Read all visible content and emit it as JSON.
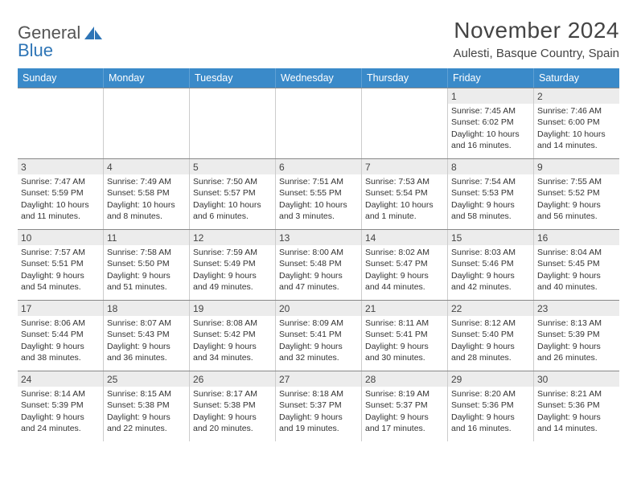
{
  "brand": {
    "part1": "General",
    "part2": "Blue"
  },
  "title": "November 2024",
  "location": "Aulesti, Basque Country, Spain",
  "header_bg": "#3a8ac9",
  "daynum_bg": "#ececec",
  "border_color": "#888888",
  "weekdays": [
    "Sunday",
    "Monday",
    "Tuesday",
    "Wednesday",
    "Thursday",
    "Friday",
    "Saturday"
  ],
  "weeks": [
    [
      {
        "n": "",
        "sr": "",
        "ss": "",
        "dl": ""
      },
      {
        "n": "",
        "sr": "",
        "ss": "",
        "dl": ""
      },
      {
        "n": "",
        "sr": "",
        "ss": "",
        "dl": ""
      },
      {
        "n": "",
        "sr": "",
        "ss": "",
        "dl": ""
      },
      {
        "n": "",
        "sr": "",
        "ss": "",
        "dl": ""
      },
      {
        "n": "1",
        "sr": "Sunrise: 7:45 AM",
        "ss": "Sunset: 6:02 PM",
        "dl": "Daylight: 10 hours and 16 minutes."
      },
      {
        "n": "2",
        "sr": "Sunrise: 7:46 AM",
        "ss": "Sunset: 6:00 PM",
        "dl": "Daylight: 10 hours and 14 minutes."
      }
    ],
    [
      {
        "n": "3",
        "sr": "Sunrise: 7:47 AM",
        "ss": "Sunset: 5:59 PM",
        "dl": "Daylight: 10 hours and 11 minutes."
      },
      {
        "n": "4",
        "sr": "Sunrise: 7:49 AM",
        "ss": "Sunset: 5:58 PM",
        "dl": "Daylight: 10 hours and 8 minutes."
      },
      {
        "n": "5",
        "sr": "Sunrise: 7:50 AM",
        "ss": "Sunset: 5:57 PM",
        "dl": "Daylight: 10 hours and 6 minutes."
      },
      {
        "n": "6",
        "sr": "Sunrise: 7:51 AM",
        "ss": "Sunset: 5:55 PM",
        "dl": "Daylight: 10 hours and 3 minutes."
      },
      {
        "n": "7",
        "sr": "Sunrise: 7:53 AM",
        "ss": "Sunset: 5:54 PM",
        "dl": "Daylight: 10 hours and 1 minute."
      },
      {
        "n": "8",
        "sr": "Sunrise: 7:54 AM",
        "ss": "Sunset: 5:53 PM",
        "dl": "Daylight: 9 hours and 58 minutes."
      },
      {
        "n": "9",
        "sr": "Sunrise: 7:55 AM",
        "ss": "Sunset: 5:52 PM",
        "dl": "Daylight: 9 hours and 56 minutes."
      }
    ],
    [
      {
        "n": "10",
        "sr": "Sunrise: 7:57 AM",
        "ss": "Sunset: 5:51 PM",
        "dl": "Daylight: 9 hours and 54 minutes."
      },
      {
        "n": "11",
        "sr": "Sunrise: 7:58 AM",
        "ss": "Sunset: 5:50 PM",
        "dl": "Daylight: 9 hours and 51 minutes."
      },
      {
        "n": "12",
        "sr": "Sunrise: 7:59 AM",
        "ss": "Sunset: 5:49 PM",
        "dl": "Daylight: 9 hours and 49 minutes."
      },
      {
        "n": "13",
        "sr": "Sunrise: 8:00 AM",
        "ss": "Sunset: 5:48 PM",
        "dl": "Daylight: 9 hours and 47 minutes."
      },
      {
        "n": "14",
        "sr": "Sunrise: 8:02 AM",
        "ss": "Sunset: 5:47 PM",
        "dl": "Daylight: 9 hours and 44 minutes."
      },
      {
        "n": "15",
        "sr": "Sunrise: 8:03 AM",
        "ss": "Sunset: 5:46 PM",
        "dl": "Daylight: 9 hours and 42 minutes."
      },
      {
        "n": "16",
        "sr": "Sunrise: 8:04 AM",
        "ss": "Sunset: 5:45 PM",
        "dl": "Daylight: 9 hours and 40 minutes."
      }
    ],
    [
      {
        "n": "17",
        "sr": "Sunrise: 8:06 AM",
        "ss": "Sunset: 5:44 PM",
        "dl": "Daylight: 9 hours and 38 minutes."
      },
      {
        "n": "18",
        "sr": "Sunrise: 8:07 AM",
        "ss": "Sunset: 5:43 PM",
        "dl": "Daylight: 9 hours and 36 minutes."
      },
      {
        "n": "19",
        "sr": "Sunrise: 8:08 AM",
        "ss": "Sunset: 5:42 PM",
        "dl": "Daylight: 9 hours and 34 minutes."
      },
      {
        "n": "20",
        "sr": "Sunrise: 8:09 AM",
        "ss": "Sunset: 5:41 PM",
        "dl": "Daylight: 9 hours and 32 minutes."
      },
      {
        "n": "21",
        "sr": "Sunrise: 8:11 AM",
        "ss": "Sunset: 5:41 PM",
        "dl": "Daylight: 9 hours and 30 minutes."
      },
      {
        "n": "22",
        "sr": "Sunrise: 8:12 AM",
        "ss": "Sunset: 5:40 PM",
        "dl": "Daylight: 9 hours and 28 minutes."
      },
      {
        "n": "23",
        "sr": "Sunrise: 8:13 AM",
        "ss": "Sunset: 5:39 PM",
        "dl": "Daylight: 9 hours and 26 minutes."
      }
    ],
    [
      {
        "n": "24",
        "sr": "Sunrise: 8:14 AM",
        "ss": "Sunset: 5:39 PM",
        "dl": "Daylight: 9 hours and 24 minutes."
      },
      {
        "n": "25",
        "sr": "Sunrise: 8:15 AM",
        "ss": "Sunset: 5:38 PM",
        "dl": "Daylight: 9 hours and 22 minutes."
      },
      {
        "n": "26",
        "sr": "Sunrise: 8:17 AM",
        "ss": "Sunset: 5:38 PM",
        "dl": "Daylight: 9 hours and 20 minutes."
      },
      {
        "n": "27",
        "sr": "Sunrise: 8:18 AM",
        "ss": "Sunset: 5:37 PM",
        "dl": "Daylight: 9 hours and 19 minutes."
      },
      {
        "n": "28",
        "sr": "Sunrise: 8:19 AM",
        "ss": "Sunset: 5:37 PM",
        "dl": "Daylight: 9 hours and 17 minutes."
      },
      {
        "n": "29",
        "sr": "Sunrise: 8:20 AM",
        "ss": "Sunset: 5:36 PM",
        "dl": "Daylight: 9 hours and 16 minutes."
      },
      {
        "n": "30",
        "sr": "Sunrise: 8:21 AM",
        "ss": "Sunset: 5:36 PM",
        "dl": "Daylight: 9 hours and 14 minutes."
      }
    ]
  ]
}
